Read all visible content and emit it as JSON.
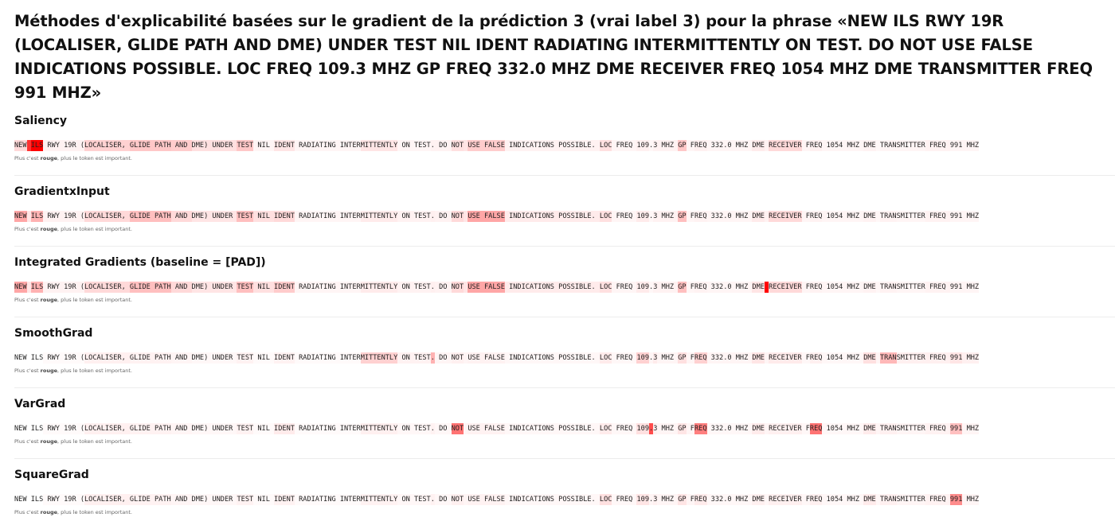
{
  "title": "Méthodes d'explicabilité basées sur le gradient de la prédiction 3 (vrai label 3) pour la phrase «NEW ILS RWY 19R (LOCALISER, GLIDE PATH AND DME) UNDER TEST NIL IDENT RADIATING INTERMITTENTLY ON TEST. DO NOT USE FALSE INDICATIONS POSSIBLE. LOC FREQ 109.3 MHZ GP FREQ 332.0 MHZ DME RECEIVER FREQ 1054 MHZ DME TRANSMITTER FREQ 991 MHZ»",
  "tokens": [
    "NEW",
    " ",
    "ILS",
    " RWY 19R (",
    "LOCALISER, ",
    "GLIDE PATH",
    " AND ",
    "DME) UNDER ",
    "TEST",
    " NIL ",
    "IDENT",
    " RADIATING INTER",
    "MITTENTLY",
    " ON TEST",
    ".",
    " DO ",
    "NOT",
    " ",
    "USE FALSE",
    " INDICATIONS POSSIBLE. ",
    "LOC",
    " FREQ ",
    "109",
    ".",
    "3",
    " MHZ ",
    "GP",
    " F",
    "REQ",
    " 332.0 MHZ ",
    "DME",
    " ",
    "RECEIVER",
    " F",
    "REQ",
    " 1054 MHZ ",
    "DME",
    " ",
    "TRAN",
    "SMITTER",
    " FREQ ",
    "991",
    " MHZ"
  ],
  "note": {
    "prefix": "Plus c'est ",
    "emphasis": "rouge",
    "suffix": ", plus le token est important."
  },
  "methods": [
    {
      "name": "Saliency",
      "weights": [
        0.15,
        0.8,
        1.0,
        0.05,
        0.18,
        0.22,
        0.2,
        0.12,
        0.22,
        0.04,
        0.1,
        0.04,
        0.1,
        0.04,
        0.05,
        0.05,
        0.12,
        0.1,
        0.2,
        0.05,
        0.12,
        0.04,
        0.06,
        0.03,
        0.05,
        0.05,
        0.22,
        0.04,
        0.06,
        0.04,
        0.08,
        0.05,
        0.15,
        0.04,
        0.06,
        0.04,
        0.05,
        0.03,
        0.04,
        0.04,
        0.05,
        0.04,
        0.04
      ]
    },
    {
      "name": "GradientxInput",
      "weights": [
        0.35,
        0.1,
        0.3,
        0.05,
        0.15,
        0.25,
        0.15,
        0.1,
        0.25,
        0.12,
        0.15,
        0.04,
        0.08,
        0.05,
        0.06,
        0.05,
        0.15,
        0.1,
        0.35,
        0.08,
        0.12,
        0.04,
        0.08,
        0.03,
        0.05,
        0.05,
        0.25,
        0.04,
        0.05,
        0.04,
        0.08,
        0.05,
        0.15,
        0.04,
        0.05,
        0.04,
        0.05,
        0.03,
        0.05,
        0.04,
        0.05,
        0.04,
        0.04
      ]
    },
    {
      "name": "Integrated Gradients (baseline = [PAD])",
      "weights": [
        0.35,
        0.1,
        0.3,
        0.05,
        0.15,
        0.25,
        0.15,
        0.1,
        0.25,
        0.12,
        0.2,
        0.04,
        0.08,
        0.05,
        0.06,
        0.05,
        0.15,
        0.1,
        0.35,
        0.08,
        0.12,
        0.04,
        0.08,
        0.03,
        0.05,
        0.05,
        0.25,
        0.04,
        0.05,
        0.04,
        0.1,
        1.0,
        0.15,
        0.04,
        0.05,
        0.04,
        0.05,
        0.03,
        0.05,
        0.04,
        0.05,
        0.04,
        0.04
      ]
    },
    {
      "name": "SmoothGrad",
      "weights": [
        0.0,
        0.0,
        0.0,
        0.02,
        0.06,
        0.05,
        0.04,
        0.03,
        0.05,
        0.02,
        0.05,
        0.02,
        0.18,
        0.05,
        0.3,
        0.04,
        0.06,
        0.04,
        0.05,
        0.03,
        0.08,
        0.03,
        0.18,
        0.04,
        0.08,
        0.04,
        0.12,
        0.04,
        0.18,
        0.04,
        0.1,
        0.04,
        0.08,
        0.03,
        0.06,
        0.03,
        0.12,
        0.04,
        0.28,
        0.06,
        0.06,
        0.1,
        0.06
      ]
    },
    {
      "name": "VarGrad",
      "weights": [
        0.0,
        0.0,
        0.0,
        0.02,
        0.06,
        0.05,
        0.04,
        0.03,
        0.05,
        0.02,
        0.08,
        0.02,
        0.06,
        0.03,
        0.05,
        0.03,
        0.55,
        0.04,
        0.05,
        0.03,
        0.08,
        0.03,
        0.12,
        0.7,
        0.06,
        0.04,
        0.1,
        0.04,
        0.5,
        0.03,
        0.08,
        0.04,
        0.06,
        0.03,
        0.55,
        0.03,
        0.08,
        0.04,
        0.06,
        0.04,
        0.05,
        0.25,
        0.04
      ]
    },
    {
      "name": "SquareGrad",
      "weights": [
        0.0,
        0.0,
        0.0,
        0.02,
        0.06,
        0.05,
        0.04,
        0.03,
        0.05,
        0.02,
        0.05,
        0.02,
        0.05,
        0.03,
        0.05,
        0.03,
        0.06,
        0.04,
        0.05,
        0.03,
        0.12,
        0.03,
        0.1,
        0.04,
        0.06,
        0.04,
        0.1,
        0.04,
        0.08,
        0.03,
        0.06,
        0.03,
        0.06,
        0.03,
        0.06,
        0.03,
        0.08,
        0.03,
        0.06,
        0.04,
        0.05,
        0.45,
        0.04
      ]
    }
  ],
  "colors": {
    "highlight_rgb": "255, 0, 0",
    "page_bg": "#ffffff"
  }
}
